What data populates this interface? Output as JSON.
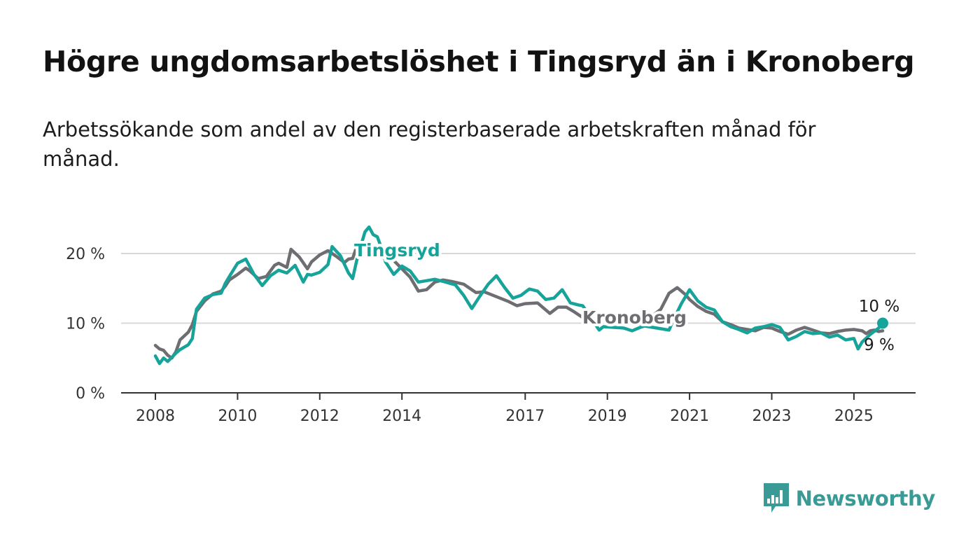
{
  "title": "Högre ungdomsarbetslöshet i Tingsryd än i Kronoberg",
  "subtitle": "Arbetssökande som andel av den registerbaserade arbetskraften månad för månad.",
  "brand": {
    "name": "Newsworthy",
    "icon": "newsworthy-chart-icon",
    "color": "#3a9a95"
  },
  "chart_data": {
    "type": "line",
    "x_unit": "year",
    "ylim": [
      0,
      25
    ],
    "grid": true,
    "legend": "inline",
    "y_ticks": [
      {
        "value": 0,
        "label": "0 %"
      },
      {
        "value": 10,
        "label": "10 %"
      },
      {
        "value": 20,
        "label": "20 %"
      }
    ],
    "x_ticks": [
      {
        "value": 2008,
        "label": "2008"
      },
      {
        "value": 2010,
        "label": "2010"
      },
      {
        "value": 2012,
        "label": "2012"
      },
      {
        "value": 2014,
        "label": "2014"
      },
      {
        "value": 2017,
        "label": "2017"
      },
      {
        "value": 2019,
        "label": "2019"
      },
      {
        "value": 2021,
        "label": "2021"
      },
      {
        "value": 2023,
        "label": "2023"
      },
      {
        "value": 2025,
        "label": "2025"
      }
    ],
    "series": [
      {
        "name": "Kronoberg",
        "color": "#6e6d72",
        "end_label": "9 %",
        "points": [
          [
            2008.0,
            6.8
          ],
          [
            2008.1,
            6.3
          ],
          [
            2008.2,
            6.1
          ],
          [
            2008.3,
            5.4
          ],
          [
            2008.4,
            5.0
          ],
          [
            2008.5,
            5.9
          ],
          [
            2008.6,
            7.6
          ],
          [
            2008.8,
            8.7
          ],
          [
            2008.9,
            9.8
          ],
          [
            2009.0,
            11.7
          ],
          [
            2009.2,
            13.2
          ],
          [
            2009.4,
            14.2
          ],
          [
            2009.6,
            14.6
          ],
          [
            2009.7,
            15.3
          ],
          [
            2009.8,
            16.2
          ],
          [
            2010.0,
            17.0
          ],
          [
            2010.2,
            17.9
          ],
          [
            2010.3,
            17.5
          ],
          [
            2010.5,
            16.4
          ],
          [
            2010.7,
            16.7
          ],
          [
            2010.9,
            18.3
          ],
          [
            2011.0,
            18.6
          ],
          [
            2011.2,
            18.0
          ],
          [
            2011.3,
            20.6
          ],
          [
            2011.5,
            19.5
          ],
          [
            2011.7,
            17.8
          ],
          [
            2011.8,
            18.8
          ],
          [
            2012.0,
            19.8
          ],
          [
            2012.2,
            20.4
          ],
          [
            2012.4,
            19.6
          ],
          [
            2012.6,
            18.7
          ],
          [
            2012.7,
            19.2
          ],
          [
            2012.8,
            19.3
          ],
          [
            2012.9,
            21.0
          ],
          [
            2013.0,
            21.3
          ],
          [
            2013.2,
            20.6
          ],
          [
            2013.5,
            19.6
          ],
          [
            2013.8,
            19.0
          ],
          [
            2014.0,
            17.8
          ],
          [
            2014.2,
            16.6
          ],
          [
            2014.4,
            14.6
          ],
          [
            2014.6,
            14.8
          ],
          [
            2014.8,
            15.9
          ],
          [
            2015.0,
            16.2
          ],
          [
            2015.2,
            16.0
          ],
          [
            2015.5,
            15.6
          ],
          [
            2015.8,
            14.4
          ],
          [
            2016.0,
            14.5
          ],
          [
            2016.3,
            13.8
          ],
          [
            2016.6,
            13.1
          ],
          [
            2016.8,
            12.5
          ],
          [
            2017.0,
            12.8
          ],
          [
            2017.3,
            12.9
          ],
          [
            2017.6,
            11.4
          ],
          [
            2017.8,
            12.3
          ],
          [
            2018.0,
            12.3
          ],
          [
            2018.2,
            11.6
          ],
          [
            2018.4,
            10.8
          ],
          [
            2018.5,
            10.7
          ],
          [
            2019.8,
            9.9
          ],
          [
            2020.0,
            10.6
          ],
          [
            2020.3,
            12.0
          ],
          [
            2020.5,
            14.3
          ],
          [
            2020.7,
            15.1
          ],
          [
            2020.9,
            14.1
          ],
          [
            2021.0,
            13.4
          ],
          [
            2021.2,
            12.4
          ],
          [
            2021.4,
            11.7
          ],
          [
            2021.6,
            11.3
          ],
          [
            2021.8,
            10.2
          ],
          [
            2022.0,
            9.8
          ],
          [
            2022.2,
            9.3
          ],
          [
            2022.4,
            9.1
          ],
          [
            2022.6,
            8.9
          ],
          [
            2022.8,
            9.4
          ],
          [
            2023.0,
            9.3
          ],
          [
            2023.2,
            8.8
          ],
          [
            2023.4,
            8.4
          ],
          [
            2023.6,
            9.0
          ],
          [
            2023.8,
            9.4
          ],
          [
            2024.0,
            9.0
          ],
          [
            2024.2,
            8.6
          ],
          [
            2024.4,
            8.5
          ],
          [
            2024.6,
            8.8
          ],
          [
            2024.8,
            9.0
          ],
          [
            2025.0,
            9.1
          ],
          [
            2025.2,
            8.9
          ],
          [
            2025.3,
            8.5
          ],
          [
            2025.4,
            8.9
          ],
          [
            2025.5,
            9.0
          ],
          [
            2025.6,
            8.8
          ],
          [
            2025.7,
            8.9
          ]
        ]
      },
      {
        "name": "Tingsryd",
        "color": "#16a399",
        "end_label": "10 %",
        "points": [
          [
            2008.0,
            5.3
          ],
          [
            2008.1,
            4.2
          ],
          [
            2008.2,
            5.0
          ],
          [
            2008.3,
            4.5
          ],
          [
            2008.4,
            5.1
          ],
          [
            2008.5,
            5.7
          ],
          [
            2008.6,
            6.2
          ],
          [
            2008.8,
            6.9
          ],
          [
            2008.9,
            7.8
          ],
          [
            2009.0,
            12.0
          ],
          [
            2009.2,
            13.6
          ],
          [
            2009.4,
            14.1
          ],
          [
            2009.6,
            14.3
          ],
          [
            2009.7,
            15.7
          ],
          [
            2009.8,
            16.7
          ],
          [
            2010.0,
            18.6
          ],
          [
            2010.2,
            19.2
          ],
          [
            2010.4,
            17.0
          ],
          [
            2010.6,
            15.4
          ],
          [
            2010.8,
            16.8
          ],
          [
            2011.0,
            17.6
          ],
          [
            2011.2,
            17.2
          ],
          [
            2011.4,
            18.3
          ],
          [
            2011.6,
            15.9
          ],
          [
            2011.7,
            17.0
          ],
          [
            2011.8,
            16.9
          ],
          [
            2012.0,
            17.3
          ],
          [
            2012.2,
            18.4
          ],
          [
            2012.3,
            21.0
          ],
          [
            2012.5,
            19.7
          ],
          [
            2012.7,
            17.2
          ],
          [
            2012.8,
            16.4
          ],
          [
            2012.9,
            19.0
          ],
          [
            2013.0,
            21.1
          ],
          [
            2013.1,
            23.1
          ],
          [
            2013.2,
            23.8
          ],
          [
            2013.3,
            22.7
          ],
          [
            2013.4,
            22.4
          ],
          [
            2013.5,
            20.8
          ],
          [
            2013.6,
            18.8
          ],
          [
            2013.8,
            17.0
          ],
          [
            2014.0,
            18.2
          ],
          [
            2014.2,
            17.5
          ],
          [
            2014.4,
            15.9
          ],
          [
            2014.6,
            16.1
          ],
          [
            2014.8,
            16.3
          ],
          [
            2015.0,
            16.0
          ],
          [
            2015.3,
            15.5
          ],
          [
            2015.5,
            14.0
          ],
          [
            2015.7,
            12.1
          ],
          [
            2015.9,
            13.9
          ],
          [
            2016.1,
            15.6
          ],
          [
            2016.3,
            16.8
          ],
          [
            2016.5,
            15.1
          ],
          [
            2016.7,
            13.6
          ],
          [
            2016.9,
            14.0
          ],
          [
            2017.1,
            14.9
          ],
          [
            2017.3,
            14.6
          ],
          [
            2017.5,
            13.4
          ],
          [
            2017.7,
            13.6
          ],
          [
            2017.9,
            14.8
          ],
          [
            2018.1,
            12.9
          ],
          [
            2018.3,
            12.6
          ],
          [
            2018.4,
            12.5
          ],
          [
            2018.8,
            9.0
          ],
          [
            2018.9,
            9.5
          ],
          [
            2019.4,
            9.3
          ],
          [
            2019.6,
            8.9
          ],
          [
            2019.8,
            9.4
          ],
          [
            2019.9,
            9.6
          ],
          [
            2020.5,
            9.0
          ],
          [
            2020.6,
            10.4
          ],
          [
            2020.8,
            12.8
          ],
          [
            2021.0,
            14.8
          ],
          [
            2021.2,
            13.2
          ],
          [
            2021.4,
            12.3
          ],
          [
            2021.6,
            11.9
          ],
          [
            2021.8,
            10.2
          ],
          [
            2022.0,
            9.5
          ],
          [
            2022.2,
            9.1
          ],
          [
            2022.4,
            8.6
          ],
          [
            2022.6,
            9.3
          ],
          [
            2022.8,
            9.5
          ],
          [
            2023.0,
            9.8
          ],
          [
            2023.2,
            9.4
          ],
          [
            2023.4,
            7.6
          ],
          [
            2023.6,
            8.1
          ],
          [
            2023.8,
            8.8
          ],
          [
            2024.0,
            8.5
          ],
          [
            2024.2,
            8.6
          ],
          [
            2024.4,
            8.0
          ],
          [
            2024.6,
            8.3
          ],
          [
            2024.8,
            7.6
          ],
          [
            2025.0,
            7.8
          ],
          [
            2025.1,
            6.3
          ],
          [
            2025.2,
            7.3
          ],
          [
            2025.4,
            8.4
          ],
          [
            2025.6,
            9.3
          ],
          [
            2025.7,
            10.0
          ]
        ]
      }
    ]
  }
}
